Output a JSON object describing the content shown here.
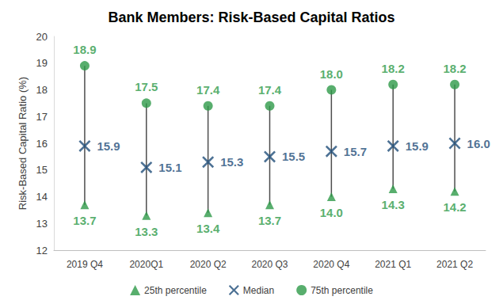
{
  "chart_data": {
    "type": "scatter",
    "title": "Bank Members: Risk-Based Capital Ratios",
    "y_label": "Risk-Based Capital Ratio (%)",
    "categories": [
      "2019 Q4",
      "2020Q1",
      "2020 Q2",
      "2020 Q3",
      "2020 Q4",
      "2021 Q1",
      "2021 Q2"
    ],
    "series": [
      {
        "name": "25th percentile",
        "color": "#2e9a48",
        "marker": "triangle",
        "values": [
          13.7,
          13.3,
          13.4,
          13.7,
          14.0,
          14.3,
          14.2
        ],
        "value_labels": [
          "13.7",
          "13.3",
          "13.4",
          "13.7",
          "14.0",
          "14.3",
          "14.2"
        ]
      },
      {
        "name": "Median",
        "color": "#1f4e79",
        "marker": "x",
        "values": [
          15.9,
          15.1,
          15.3,
          15.5,
          15.7,
          15.9,
          16.0
        ],
        "value_labels": [
          "15.9",
          "15.1",
          "15.3",
          "15.5",
          "15.7",
          "15.9",
          "16.0"
        ]
      },
      {
        "name": "75th percentile",
        "color": "#2e9a48",
        "marker": "circle",
        "values": [
          18.9,
          17.5,
          17.4,
          17.4,
          18.0,
          18.2,
          18.2
        ],
        "value_labels": [
          "18.9",
          "17.5",
          "17.4",
          "17.4",
          "18.0",
          "18.2",
          "18.2"
        ]
      }
    ],
    "ylim": [
      12,
      20
    ],
    "yticks": [
      12,
      13,
      14,
      15,
      16,
      17,
      18,
      19,
      20
    ],
    "grid": false,
    "legend": "bottom",
    "data_labels": true
  }
}
